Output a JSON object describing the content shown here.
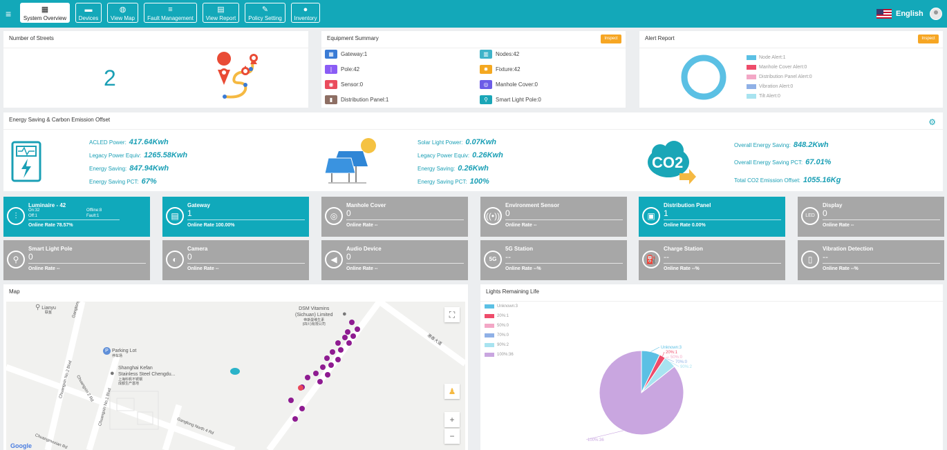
{
  "nav": {
    "menu_icon": "hamburger-icon",
    "items": [
      {
        "label": "System Overview",
        "icon": "grid-icon",
        "active": true
      },
      {
        "label": "Devices",
        "icon": "devices-icon"
      },
      {
        "label": "View Map",
        "icon": "globe-icon"
      },
      {
        "label": "Fault Management",
        "icon": "stack-icon"
      },
      {
        "label": "View Report",
        "icon": "report-icon"
      },
      {
        "label": "Policy Setting",
        "icon": "edit-icon"
      },
      {
        "label": "Inventory",
        "icon": "pin-icon"
      }
    ],
    "language": "English"
  },
  "streets": {
    "title": "Number of Streets",
    "count": "2"
  },
  "equipment": {
    "title": "Equipment Summary",
    "inspect": "Inspect",
    "items": [
      {
        "label": "Gateway:1",
        "color": "#3a7bd5"
      },
      {
        "label": "Nodes:42",
        "color": "#3fb3c9"
      },
      {
        "label": "Pole:42",
        "color": "#8a5cf5"
      },
      {
        "label": "Fixture:42",
        "color": "#f4a820"
      },
      {
        "label": "Sensor:0",
        "color": "#ea4b5c"
      },
      {
        "label": "Manhole Cover:0",
        "color": "#6c5ce7"
      },
      {
        "label": "Distribution Panel:1",
        "color": "#8d6e63"
      },
      {
        "label": "Smart Light Pole:0",
        "color": "#1aa6b7"
      }
    ]
  },
  "alerts": {
    "title": "Alert Report",
    "inspect": "Inspect",
    "legend": [
      {
        "label": "Node Alert:1",
        "color": "#5bc0e4"
      },
      {
        "label": "Manhole Cover Alert:0",
        "color": "#ee4c6a"
      },
      {
        "label": "Distribution Panel Alert:0",
        "color": "#f3a7c6"
      },
      {
        "label": "Vibration Alert:0",
        "color": "#8fb0e6"
      },
      {
        "label": "Tilt Alert:0",
        "color": "#a8e3f0"
      }
    ]
  },
  "energy": {
    "title": "Energy Saving & Carbon Emission Offset",
    "acled": [
      {
        "label": "ACLED Power:",
        "value": "417.64Kwh"
      },
      {
        "label": "Legacy Power Equiv:",
        "value": "1265.58Kwh"
      },
      {
        "label": "Energy Saving:",
        "value": "847.94Kwh"
      },
      {
        "label": "Energy Saving PCT:",
        "value": "67%"
      }
    ],
    "solar": [
      {
        "label": "Solar Light Power:",
        "value": "0.07Kwh"
      },
      {
        "label": "Legacy Power Equiv:",
        "value": "0.26Kwh"
      },
      {
        "label": "Energy Saving:",
        "value": "0.26Kwh"
      },
      {
        "label": "Energy Saving PCT:",
        "value": "100%"
      }
    ],
    "overall": [
      {
        "label": "Overall Energy Saving:",
        "value": "848.2Kwh"
      },
      {
        "label": "Overall Energy Saving PCT:",
        "value": "67.01%"
      },
      {
        "label": "Total CO2 Emission Offset:",
        "value": "1055.16Kg"
      }
    ],
    "co2_label": "CO2"
  },
  "tiles_row1": [
    {
      "name": "Luminaire - 42",
      "value": "",
      "rate": "Online Rate 78.57%",
      "teal": true,
      "icon": "sliders-icon",
      "extra": {
        "on": "On:32",
        "off": "Off:1",
        "offline": "Offline:8",
        "fault": "Fault:1"
      }
    },
    {
      "name": "Gateway",
      "value": "1",
      "rate": "Online Rate 100.00%",
      "teal": true,
      "icon": "router-icon"
    },
    {
      "name": "Manhole Cover",
      "value": "0",
      "rate": "Online Rate --",
      "teal": false,
      "icon": "manhole-icon"
    },
    {
      "name": "Environment Sensor",
      "value": "0",
      "rate": "Online Rate --",
      "teal": false,
      "icon": "signal-icon"
    },
    {
      "name": "Distribution Panel",
      "value": "1",
      "rate": "Online Rate 0.00%",
      "teal": true,
      "icon": "panel-icon"
    },
    {
      "name": "Display",
      "value": "0",
      "rate": "Online Rate --",
      "teal": false,
      "icon": "led-icon"
    }
  ],
  "tiles_row2": [
    {
      "name": "Smart Light Pole",
      "value": "0",
      "rate": "Online Rate --",
      "icon": "pole-icon"
    },
    {
      "name": "Camera",
      "value": "0",
      "rate": "Online Rate --",
      "icon": "camera-icon"
    },
    {
      "name": "Audio Device",
      "value": "0",
      "rate": "Online Rate --",
      "icon": "speaker-icon"
    },
    {
      "name": "5G Station",
      "value": "--",
      "rate": "Online Rate --%",
      "icon": "5g-icon"
    },
    {
      "name": "Charge Station",
      "value": "--",
      "rate": "Online Rate --%",
      "icon": "charger-icon"
    },
    {
      "name": "Vibration Detection",
      "value": "--",
      "rate": "Online Rate --%",
      "icon": "vibration-icon"
    }
  ],
  "map": {
    "title": "Map",
    "labels": {
      "lianyu": "Lianyu",
      "lianyu_cn": "联鱼",
      "dsm": "DSM Vitamins",
      "dsm2": "(Sichuan) Limited",
      "dsm_cn": "帝斯曼维生素",
      "dsm_cn2": "(四川)有限公司",
      "parking": "Parking Lot",
      "parking_cn": "停车场",
      "kefan": "Shanghai Kefan",
      "kefan2": "Stainless Steel Chengdu...",
      "kefan_cn": "上海科帆不锈钢",
      "kefan_cn2": "成都生产基地",
      "road1": "Chuangxin No.2 Blvd",
      "road2": "Chuangxin 2 Rd",
      "road3": "Chuangxin No.1 Blvd",
      "road4": "Ganglong North 4 Rd",
      "road5": "Chuangmoxian Rd",
      "road6": "Gangtong",
      "road7": "港泰大道",
      "google": "Google"
    },
    "zoom_in": "+",
    "zoom_out": "−"
  },
  "lights": {
    "title": "Lights Remaining Life",
    "legend": [
      {
        "label": "Unknown:3",
        "color": "#5bc0e4"
      },
      {
        "label": "20%:1",
        "color": "#ee4c6a"
      },
      {
        "label": "50%:0",
        "color": "#f3a7c6"
      },
      {
        "label": "70%:0",
        "color": "#8fb0e6"
      },
      {
        "label": "90%:2",
        "color": "#a8e3f0"
      },
      {
        "label": "100%:36",
        "color": "#c9a6e0"
      }
    ]
  },
  "chart_data": {
    "type": "pie",
    "title": "Lights Remaining Life",
    "categories": [
      "Unknown",
      "20%",
      "50%",
      "70%",
      "90%",
      "100%"
    ],
    "values": [
      3,
      1,
      0,
      0,
      2,
      36
    ],
    "colors": [
      "#5bc0e4",
      "#ee4c6a",
      "#f3a7c6",
      "#8fb0e6",
      "#a8e3f0",
      "#c9a6e0"
    ],
    "labels": [
      "Unknown:3",
      "20%:1",
      "50%:0",
      "70%:0",
      "90%:2",
      "100%:36"
    ],
    "legend": "top-left"
  }
}
